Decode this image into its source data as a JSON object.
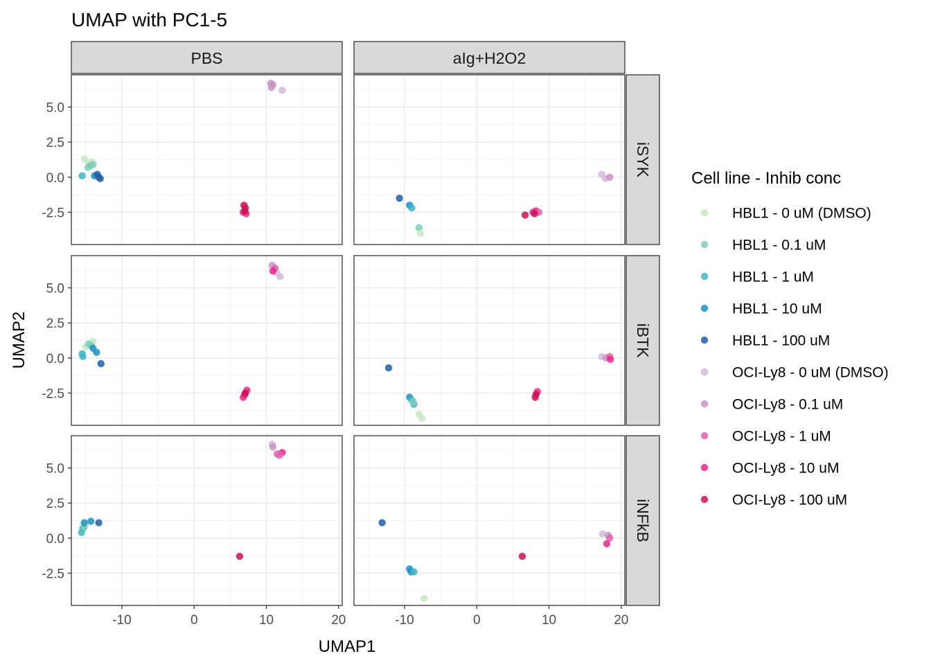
{
  "chart_data": {
    "type": "scatter",
    "title": "UMAP with PC1-5",
    "xlabel": "UMAP1",
    "ylabel": "UMAP2",
    "xlim": [
      -17,
      20.5
    ],
    "ylim": [
      -4.8,
      7.3
    ],
    "x_ticks": [
      -10,
      0,
      10,
      20
    ],
    "x_tick_labels": [
      "-10",
      "0",
      "10",
      "20"
    ],
    "y_ticks": [
      -2.5,
      0,
      2.5,
      5
    ],
    "y_tick_labels": [
      "-2.5",
      "0.0",
      "2.5",
      "5.0"
    ],
    "grid": true,
    "legend_position": "right",
    "facet_columns": [
      "PBS",
      "aIg+H2O2"
    ],
    "facet_rows": [
      "iSYK",
      "iBTK",
      "iNFkB"
    ],
    "legend_title": "Cell line - Inhib conc",
    "series": [
      {
        "name": "HBL1 - 0 uM (DMSO)",
        "color": "#c7e9c0"
      },
      {
        "name": "HBL1 - 0.1 uM",
        "color": "#7fcdbb"
      },
      {
        "name": "HBL1 - 1 uM",
        "color": "#41b6c4"
      },
      {
        "name": "HBL1 - 10 uM",
        "color": "#1d91c0"
      },
      {
        "name": "HBL1 - 100 uM",
        "color": "#225ea8"
      },
      {
        "name": "OCI-Ly8 - 0 uM (DMSO)",
        "color": "#d4b9da"
      },
      {
        "name": "OCI-Ly8 - 0.1 uM",
        "color": "#c994c7"
      },
      {
        "name": "OCI-Ly8 - 1 uM",
        "color": "#df65b0"
      },
      {
        "name": "OCI-Ly8 - 10 uM",
        "color": "#e7298a"
      },
      {
        "name": "OCI-Ly8 - 100 uM",
        "color": "#ce1256"
      }
    ],
    "points": [
      {
        "row": 0,
        "col": 0,
        "s": 0,
        "x": -15.2,
        "y": 1.3
      },
      {
        "row": 0,
        "col": 0,
        "s": 0,
        "x": -14.6,
        "y": 1.0
      },
      {
        "row": 0,
        "col": 0,
        "s": 0,
        "x": -14.2,
        "y": 1.1
      },
      {
        "row": 0,
        "col": 0,
        "s": 1,
        "x": -14.7,
        "y": 0.7
      },
      {
        "row": 0,
        "col": 0,
        "s": 1,
        "x": -14.4,
        "y": 0.8
      },
      {
        "row": 0,
        "col": 0,
        "s": 1,
        "x": -14.0,
        "y": 0.9
      },
      {
        "row": 0,
        "col": 0,
        "s": 2,
        "x": -15.5,
        "y": 0.1
      },
      {
        "row": 0,
        "col": 0,
        "s": 3,
        "x": -13.8,
        "y": 0.1
      },
      {
        "row": 0,
        "col": 0,
        "s": 4,
        "x": -13.4,
        "y": 0.2
      },
      {
        "row": 0,
        "col": 0,
        "s": 4,
        "x": -13.2,
        "y": 0.0
      },
      {
        "row": 0,
        "col": 0,
        "s": 4,
        "x": -13.0,
        "y": -0.1
      },
      {
        "row": 0,
        "col": 0,
        "s": 5,
        "x": 12.2,
        "y": 6.2
      },
      {
        "row": 0,
        "col": 0,
        "s": 6,
        "x": 10.6,
        "y": 6.7
      },
      {
        "row": 0,
        "col": 0,
        "s": 6,
        "x": 10.9,
        "y": 6.6
      },
      {
        "row": 0,
        "col": 0,
        "s": 6,
        "x": 10.7,
        "y": 6.4
      },
      {
        "row": 0,
        "col": 0,
        "s": 9,
        "x": 6.9,
        "y": -2.0
      },
      {
        "row": 0,
        "col": 0,
        "s": 9,
        "x": 7.1,
        "y": -2.2
      },
      {
        "row": 0,
        "col": 0,
        "s": 8,
        "x": 6.8,
        "y": -2.5
      },
      {
        "row": 0,
        "col": 0,
        "s": 8,
        "x": 7.2,
        "y": -2.6
      },
      {
        "row": 0,
        "col": 0,
        "s": 9,
        "x": 7.0,
        "y": -2.4
      },
      {
        "row": 0,
        "col": 1,
        "s": 4,
        "x": -10.7,
        "y": -1.5
      },
      {
        "row": 0,
        "col": 1,
        "s": 3,
        "x": -9.3,
        "y": -2.0
      },
      {
        "row": 0,
        "col": 1,
        "s": 2,
        "x": -9.0,
        "y": -2.2
      },
      {
        "row": 0,
        "col": 1,
        "s": 1,
        "x": -8.0,
        "y": -3.6
      },
      {
        "row": 0,
        "col": 1,
        "s": 0,
        "x": -7.8,
        "y": -4.0
      },
      {
        "row": 0,
        "col": 1,
        "s": 5,
        "x": 17.3,
        "y": 0.2
      },
      {
        "row": 0,
        "col": 1,
        "s": 5,
        "x": 17.8,
        "y": -0.1
      },
      {
        "row": 0,
        "col": 1,
        "s": 6,
        "x": 18.4,
        "y": 0.0
      },
      {
        "row": 0,
        "col": 1,
        "s": 9,
        "x": 6.7,
        "y": -2.7
      },
      {
        "row": 0,
        "col": 1,
        "s": 8,
        "x": 7.8,
        "y": -2.5
      },
      {
        "row": 0,
        "col": 1,
        "s": 8,
        "x": 8.2,
        "y": -2.4
      },
      {
        "row": 0,
        "col": 1,
        "s": 7,
        "x": 8.6,
        "y": -2.5
      },
      {
        "row": 0,
        "col": 1,
        "s": 9,
        "x": 8.0,
        "y": -2.6
      },
      {
        "row": 1,
        "col": 0,
        "s": 0,
        "x": -15.0,
        "y": 0.8
      },
      {
        "row": 1,
        "col": 0,
        "s": 0,
        "x": -14.0,
        "y": 1.2
      },
      {
        "row": 1,
        "col": 0,
        "s": 1,
        "x": -14.6,
        "y": 1.0
      },
      {
        "row": 1,
        "col": 0,
        "s": 1,
        "x": -14.3,
        "y": 0.9
      },
      {
        "row": 1,
        "col": 0,
        "s": 2,
        "x": -15.5,
        "y": 0.3
      },
      {
        "row": 1,
        "col": 0,
        "s": 2,
        "x": -15.4,
        "y": 0.1
      },
      {
        "row": 1,
        "col": 0,
        "s": 3,
        "x": -14.0,
        "y": 0.7
      },
      {
        "row": 1,
        "col": 0,
        "s": 3,
        "x": -13.5,
        "y": 0.4
      },
      {
        "row": 1,
        "col": 0,
        "s": 4,
        "x": -12.9,
        "y": -0.4
      },
      {
        "row": 1,
        "col": 0,
        "s": 5,
        "x": 11.9,
        "y": 5.8
      },
      {
        "row": 1,
        "col": 0,
        "s": 5,
        "x": 11.4,
        "y": 6.1
      },
      {
        "row": 1,
        "col": 0,
        "s": 6,
        "x": 10.8,
        "y": 6.6
      },
      {
        "row": 1,
        "col": 0,
        "s": 7,
        "x": 11.2,
        "y": 6.4
      },
      {
        "row": 1,
        "col": 0,
        "s": 8,
        "x": 10.9,
        "y": 6.2
      },
      {
        "row": 1,
        "col": 0,
        "s": 8,
        "x": 7.3,
        "y": -2.3
      },
      {
        "row": 1,
        "col": 0,
        "s": 9,
        "x": 7.0,
        "y": -2.6
      },
      {
        "row": 1,
        "col": 0,
        "s": 8,
        "x": 6.8,
        "y": -2.8
      },
      {
        "row": 1,
        "col": 0,
        "s": 9,
        "x": 7.1,
        "y": -2.5
      },
      {
        "row": 1,
        "col": 1,
        "s": 4,
        "x": -12.2,
        "y": -0.7
      },
      {
        "row": 1,
        "col": 1,
        "s": 3,
        "x": -9.3,
        "y": -2.8
      },
      {
        "row": 1,
        "col": 1,
        "s": 2,
        "x": -9.0,
        "y": -3.0
      },
      {
        "row": 1,
        "col": 1,
        "s": 2,
        "x": -8.7,
        "y": -3.3
      },
      {
        "row": 1,
        "col": 1,
        "s": 1,
        "x": -8.8,
        "y": -3.1
      },
      {
        "row": 1,
        "col": 1,
        "s": 0,
        "x": -8.0,
        "y": -4.0
      },
      {
        "row": 1,
        "col": 1,
        "s": 0,
        "x": -7.6,
        "y": -4.3
      },
      {
        "row": 1,
        "col": 1,
        "s": 5,
        "x": 17.3,
        "y": 0.1
      },
      {
        "row": 1,
        "col": 1,
        "s": 6,
        "x": 17.9,
        "y": 0.0
      },
      {
        "row": 1,
        "col": 1,
        "s": 7,
        "x": 18.4,
        "y": 0.1
      },
      {
        "row": 1,
        "col": 1,
        "s": 8,
        "x": 18.5,
        "y": -0.1
      },
      {
        "row": 1,
        "col": 1,
        "s": 8,
        "x": 8.4,
        "y": -2.4
      },
      {
        "row": 1,
        "col": 1,
        "s": 9,
        "x": 8.2,
        "y": -2.6
      },
      {
        "row": 1,
        "col": 1,
        "s": 9,
        "x": 8.1,
        "y": -2.8
      },
      {
        "row": 2,
        "col": 0,
        "s": 2,
        "x": -15.6,
        "y": 0.4
      },
      {
        "row": 2,
        "col": 0,
        "s": 2,
        "x": -15.4,
        "y": 0.7
      },
      {
        "row": 2,
        "col": 0,
        "s": 1,
        "x": -15.2,
        "y": 0.8
      },
      {
        "row": 2,
        "col": 0,
        "s": 3,
        "x": -15.2,
        "y": 1.1
      },
      {
        "row": 2,
        "col": 0,
        "s": 3,
        "x": -14.3,
        "y": 1.2
      },
      {
        "row": 2,
        "col": 0,
        "s": 4,
        "x": -13.2,
        "y": 1.1
      },
      {
        "row": 2,
        "col": 0,
        "s": 5,
        "x": 10.8,
        "y": 6.7
      },
      {
        "row": 2,
        "col": 0,
        "s": 6,
        "x": 10.9,
        "y": 6.5
      },
      {
        "row": 2,
        "col": 0,
        "s": 7,
        "x": 11.5,
        "y": 6.0
      },
      {
        "row": 2,
        "col": 0,
        "s": 8,
        "x": 12.2,
        "y": 6.1
      },
      {
        "row": 2,
        "col": 0,
        "s": 7,
        "x": 11.8,
        "y": 5.9
      },
      {
        "row": 2,
        "col": 0,
        "s": 9,
        "x": 6.3,
        "y": -1.3
      },
      {
        "row": 2,
        "col": 1,
        "s": 4,
        "x": -13.1,
        "y": 1.1
      },
      {
        "row": 2,
        "col": 1,
        "s": 3,
        "x": -9.3,
        "y": -2.2
      },
      {
        "row": 2,
        "col": 1,
        "s": 3,
        "x": -9.1,
        "y": -2.4
      },
      {
        "row": 2,
        "col": 1,
        "s": 2,
        "x": -8.7,
        "y": -2.4
      },
      {
        "row": 2,
        "col": 1,
        "s": 0,
        "x": -7.3,
        "y": -4.3
      },
      {
        "row": 2,
        "col": 1,
        "s": 5,
        "x": 17.4,
        "y": 0.3
      },
      {
        "row": 2,
        "col": 1,
        "s": 6,
        "x": 18.2,
        "y": 0.2
      },
      {
        "row": 2,
        "col": 1,
        "s": 7,
        "x": 18.4,
        "y": 0.0
      },
      {
        "row": 2,
        "col": 1,
        "s": 8,
        "x": 18.0,
        "y": -0.4
      },
      {
        "row": 2,
        "col": 1,
        "s": 9,
        "x": 6.3,
        "y": -1.3
      }
    ]
  }
}
